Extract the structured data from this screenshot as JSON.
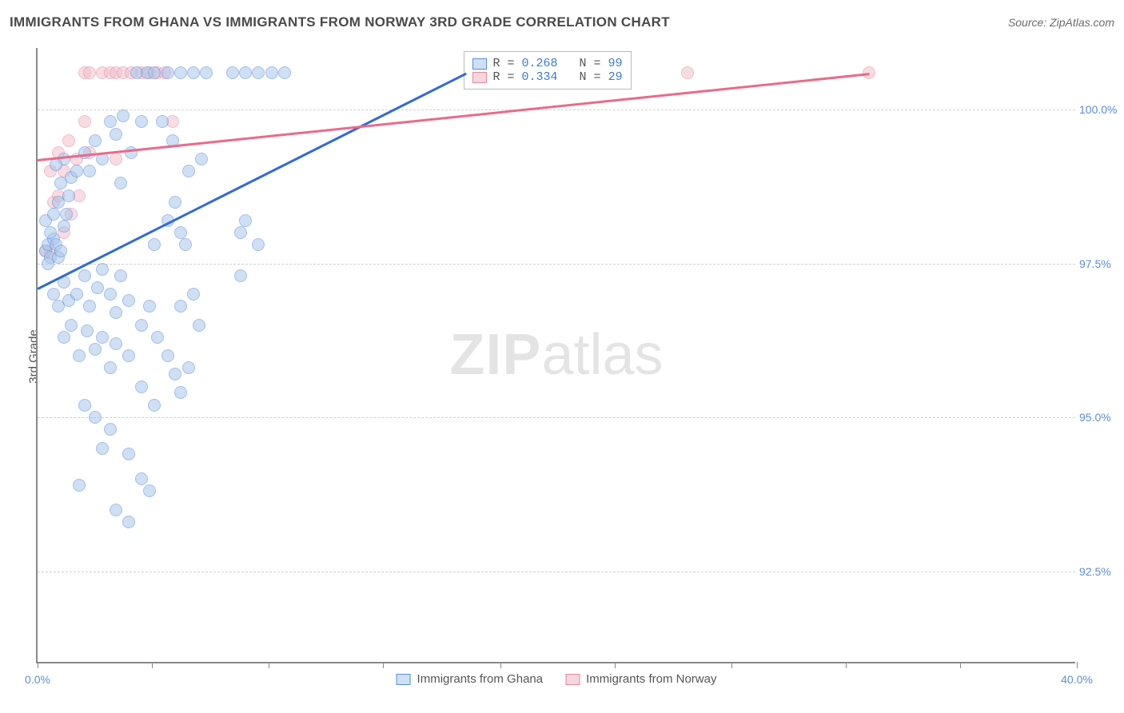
{
  "title": "IMMIGRANTS FROM GHANA VS IMMIGRANTS FROM NORWAY 3RD GRADE CORRELATION CHART",
  "source": "Source: ZipAtlas.com",
  "ylabel": "3rd Grade",
  "watermark_zip": "ZIP",
  "watermark_atlas": "atlas",
  "chart": {
    "type": "scatter",
    "xlim": [
      0,
      40
    ],
    "ylim": [
      91,
      101
    ],
    "background_color": "#ffffff",
    "grid_color": "#d0d0d0",
    "axis_color": "#888888",
    "tick_label_color": "#5b8dd6",
    "marker_radius": 8,
    "marker_opacity": 0.55,
    "x_ticks": [
      0,
      4.4,
      8.9,
      13.3,
      17.8,
      22.2,
      26.7,
      31.1,
      35.5,
      40
    ],
    "x_tick_labels": {
      "0": "0.0%",
      "40": "40.0%"
    },
    "y_grid": [
      92.5,
      95.0,
      97.5,
      100.0
    ],
    "y_tick_labels": {
      "92.5": "92.5%",
      "95.0": "95.0%",
      "97.5": "97.5%",
      "100.0": "100.0%"
    }
  },
  "series": {
    "ghana": {
      "label": "Immigrants from Ghana",
      "fill_color": "#a8c5ec",
      "stroke_color": "#5b8dd6",
      "trend_color": "#2e6bd6",
      "R": "0.268",
      "N": "99",
      "trend": {
        "x1": 0,
        "y1": 97.1,
        "x2": 16.5,
        "y2": 100.6
      },
      "points": [
        [
          0.3,
          97.7
        ],
        [
          0.4,
          97.8
        ],
        [
          0.5,
          97.6
        ],
        [
          0.6,
          97.9
        ],
        [
          0.4,
          97.5
        ],
        [
          0.7,
          97.8
        ],
        [
          0.8,
          97.6
        ],
        [
          0.9,
          97.7
        ],
        [
          0.5,
          98.0
        ],
        [
          0.3,
          98.2
        ],
        [
          0.6,
          98.3
        ],
        [
          0.8,
          98.5
        ],
        [
          1.0,
          98.1
        ],
        [
          1.2,
          98.6
        ],
        [
          1.1,
          98.3
        ],
        [
          0.9,
          98.8
        ],
        [
          1.3,
          98.9
        ],
        [
          1.5,
          99.0
        ],
        [
          1.0,
          99.2
        ],
        [
          0.7,
          99.1
        ],
        [
          1.8,
          99.3
        ],
        [
          2.0,
          99.0
        ],
        [
          2.2,
          99.5
        ],
        [
          2.5,
          99.2
        ],
        [
          2.8,
          99.8
        ],
        [
          3.0,
          99.6
        ],
        [
          3.3,
          99.9
        ],
        [
          3.2,
          98.8
        ],
        [
          3.6,
          99.3
        ],
        [
          3.8,
          100.6
        ],
        [
          4.0,
          99.8
        ],
        [
          4.2,
          100.6
        ],
        [
          4.5,
          100.6
        ],
        [
          4.8,
          99.8
        ],
        [
          5.0,
          100.6
        ],
        [
          5.2,
          99.5
        ],
        [
          5.5,
          100.6
        ],
        [
          5.8,
          99.0
        ],
        [
          6.0,
          100.6
        ],
        [
          6.3,
          99.2
        ],
        [
          6.5,
          100.6
        ],
        [
          7.5,
          100.6
        ],
        [
          8.0,
          100.6
        ],
        [
          8.5,
          100.6
        ],
        [
          9.0,
          100.6
        ],
        [
          9.5,
          100.6
        ],
        [
          0.6,
          97.0
        ],
        [
          0.8,
          96.8
        ],
        [
          1.0,
          97.2
        ],
        [
          1.2,
          96.9
        ],
        [
          1.5,
          97.0
        ],
        [
          1.8,
          97.3
        ],
        [
          2.0,
          96.8
        ],
        [
          2.3,
          97.1
        ],
        [
          2.5,
          97.4
        ],
        [
          2.8,
          97.0
        ],
        [
          3.0,
          96.7
        ],
        [
          3.2,
          97.3
        ],
        [
          3.5,
          96.9
        ],
        [
          1.0,
          96.3
        ],
        [
          1.3,
          96.5
        ],
        [
          1.6,
          96.0
        ],
        [
          1.9,
          96.4
        ],
        [
          2.2,
          96.1
        ],
        [
          2.5,
          96.3
        ],
        [
          2.8,
          95.8
        ],
        [
          3.0,
          96.2
        ],
        [
          3.5,
          96.0
        ],
        [
          4.0,
          96.5
        ],
        [
          4.3,
          96.8
        ],
        [
          4.6,
          96.3
        ],
        [
          5.0,
          96.0
        ],
        [
          5.3,
          95.7
        ],
        [
          5.5,
          96.8
        ],
        [
          5.7,
          97.8
        ],
        [
          6.0,
          97.0
        ],
        [
          6.2,
          96.5
        ],
        [
          7.8,
          97.3
        ],
        [
          8.0,
          98.2
        ],
        [
          7.8,
          98.0
        ],
        [
          5.0,
          98.2
        ],
        [
          5.3,
          98.5
        ],
        [
          5.5,
          98.0
        ],
        [
          4.5,
          97.8
        ],
        [
          1.8,
          95.2
        ],
        [
          2.2,
          95.0
        ],
        [
          2.5,
          94.5
        ],
        [
          2.8,
          94.8
        ],
        [
          3.5,
          94.4
        ],
        [
          4.0,
          94.0
        ],
        [
          4.3,
          93.8
        ],
        [
          1.6,
          93.9
        ],
        [
          3.0,
          93.5
        ],
        [
          3.5,
          93.3
        ],
        [
          4.0,
          95.5
        ],
        [
          4.5,
          95.2
        ],
        [
          5.5,
          95.4
        ],
        [
          5.8,
          95.8
        ],
        [
          8.5,
          97.8
        ]
      ]
    },
    "norway": {
      "label": "Immigrants from Norway",
      "fill_color": "#f4c0cc",
      "stroke_color": "#e08aa0",
      "trend_color": "#e86b8a",
      "R": "0.334",
      "N": "29",
      "trend": {
        "x1": 0,
        "y1": 99.2,
        "x2": 32,
        "y2": 100.6
      },
      "points": [
        [
          0.5,
          99.0
        ],
        [
          0.8,
          99.3
        ],
        [
          1.0,
          99.0
        ],
        [
          1.2,
          99.5
        ],
        [
          1.5,
          99.2
        ],
        [
          1.8,
          99.8
        ],
        [
          2.0,
          99.3
        ],
        [
          0.6,
          98.5
        ],
        [
          0.8,
          98.6
        ],
        [
          1.0,
          98.0
        ],
        [
          1.3,
          98.3
        ],
        [
          1.6,
          98.6
        ],
        [
          1.8,
          100.6
        ],
        [
          2.0,
          100.6
        ],
        [
          2.5,
          100.6
        ],
        [
          2.8,
          100.6
        ],
        [
          3.0,
          100.6
        ],
        [
          3.3,
          100.6
        ],
        [
          3.6,
          100.6
        ],
        [
          4.0,
          100.6
        ],
        [
          4.3,
          100.6
        ],
        [
          4.6,
          100.6
        ],
        [
          4.9,
          100.6
        ],
        [
          5.2,
          99.8
        ],
        [
          0.3,
          97.7
        ],
        [
          0.5,
          97.7
        ],
        [
          3.0,
          99.2
        ],
        [
          25.0,
          100.6
        ],
        [
          32.0,
          100.6
        ]
      ]
    }
  },
  "legend_strings": {
    "R_label": "R = ",
    "N_label": "N = "
  }
}
